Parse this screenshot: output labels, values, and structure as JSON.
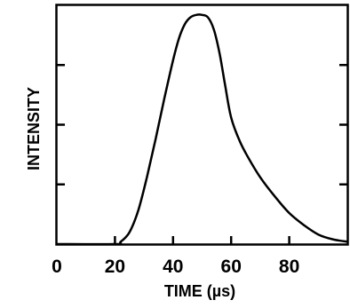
{
  "chart_data": {
    "type": "line",
    "title": "",
    "xlabel": "TIME (µs)",
    "ylabel": "INTENSITY",
    "xlim": [
      0,
      100
    ],
    "ylim": [
      0,
      1
    ],
    "x_ticks": [
      0,
      20,
      40,
      60,
      80
    ],
    "y_ticks_unlabeled": [
      0.25,
      0.5,
      0.75
    ],
    "grid": false,
    "series": [
      {
        "x": [
          0,
          20,
          22,
          25,
          28,
          31,
          34,
          37,
          40,
          42,
          44,
          46,
          48,
          50,
          52,
          54,
          56,
          58,
          60,
          63,
          66,
          70,
          75,
          80,
          85,
          90,
          95,
          100
        ],
        "values": [
          0,
          0,
          0.01,
          0.05,
          0.14,
          0.28,
          0.44,
          0.61,
          0.77,
          0.86,
          0.92,
          0.95,
          0.96,
          0.96,
          0.95,
          0.9,
          0.8,
          0.66,
          0.53,
          0.43,
          0.36,
          0.28,
          0.2,
          0.13,
          0.08,
          0.04,
          0.02,
          0.01
        ]
      }
    ]
  }
}
